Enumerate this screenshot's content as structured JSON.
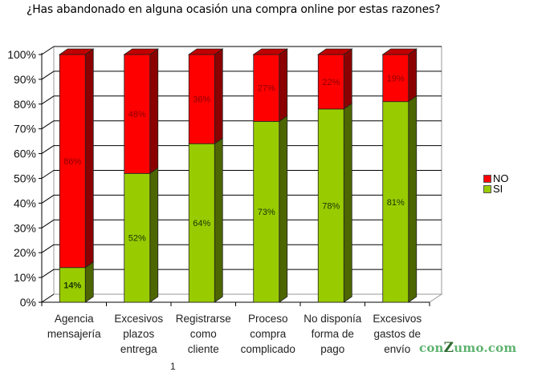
{
  "title": "¿Has abandonado en alguna ocasión una compra online por estas razones?",
  "colors": {
    "no_front": "#ff0000",
    "no_side": "#8b0000",
    "no_top": "#c00000",
    "si_front": "#99cc00",
    "si_side": "#4d6600",
    "si_top": "#77a000",
    "grid": "#000000",
    "watermark": "#5fb36f"
  },
  "legend": [
    {
      "label": "NO",
      "color": "#ff0000"
    },
    {
      "label": "SI",
      "color": "#99cc00"
    }
  ],
  "watermark": {
    "pre": "con",
    "z": "Z",
    "post": "umo.com"
  },
  "stray_mark": "1",
  "chart_data": {
    "type": "bar",
    "stacked": true,
    "style": "3d-stacked-100-percent",
    "title": "¿Has abandonado en alguna ocasión una compra online por estas razones?",
    "xlabel": "",
    "ylabel": "",
    "ylim": [
      0,
      100
    ],
    "yticks": [
      "0%",
      "10%",
      "20%",
      "30%",
      "40%",
      "50%",
      "60%",
      "70%",
      "80%",
      "90%",
      "100%"
    ],
    "grid": true,
    "legend_position": "right",
    "categories": [
      "Agencia mensajería",
      "Excesivos plazos entrega",
      "Registrarse como cliente",
      "Proceso compra complicado",
      "No disponía forma de pago",
      "Excesivos gastos de envío"
    ],
    "category_lines": [
      [
        "Agencia",
        "mensajería"
      ],
      [
        "Excesivos",
        "plazos",
        "entrega"
      ],
      [
        "Registrarse",
        "como",
        "cliente"
      ],
      [
        "Proceso",
        "compra",
        "complicado"
      ],
      [
        "No disponía",
        "forma de",
        "pago"
      ],
      [
        "Excesivos",
        "gastos de",
        "envío"
      ]
    ],
    "series": [
      {
        "name": "SI",
        "values": [
          14,
          52,
          64,
          73,
          78,
          81
        ],
        "labels": [
          "14%",
          "52%",
          "64%",
          "73%",
          "78%",
          "81%"
        ]
      },
      {
        "name": "NO",
        "values": [
          86,
          48,
          36,
          27,
          22,
          19
        ],
        "labels": [
          "86%",
          "48%",
          "36%",
          "27%",
          "22%",
          "19%"
        ]
      }
    ]
  }
}
